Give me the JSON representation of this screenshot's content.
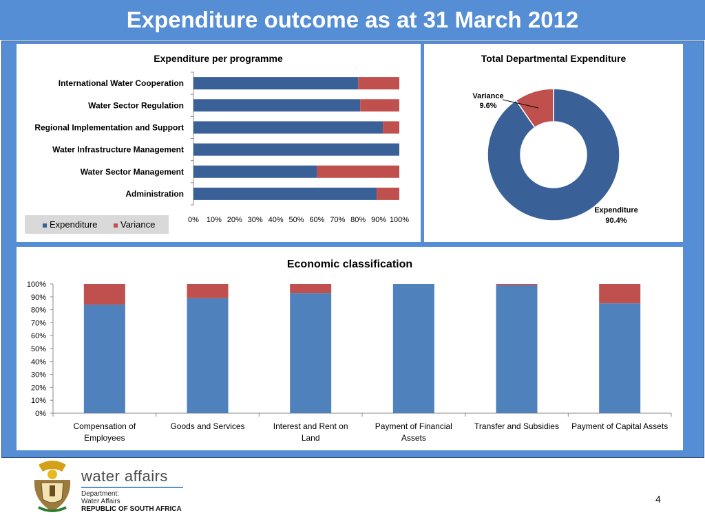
{
  "slide": {
    "title": "Expenditure outcome as at 31 March 2012",
    "page_number": "4"
  },
  "footer": {
    "brand": "water affairs",
    "dept_line1": "Department:",
    "dept_line2": "Water Affairs",
    "country": "REPUBLIC OF SOUTH AFRICA"
  },
  "colors": {
    "title_bar": "#558ED5",
    "expenditure_dark": "#3A6197",
    "expenditure_light": "#4F81BD",
    "variance": "#C0504D"
  },
  "chart_data": [
    {
      "id": "programme",
      "type": "bar",
      "orientation": "horizontal",
      "stacked": "100%",
      "title": "Expenditure per programme",
      "categories": [
        "International Water Cooperation",
        "Water Sector Regulation",
        "Regional Implementation and Support",
        "Water Infrastructure Management",
        "Water Sector Management",
        "Administration"
      ],
      "series": [
        {
          "name": "Expenditure",
          "values": [
            80,
            81,
            92,
            100,
            60,
            89
          ]
        },
        {
          "name": "Variance",
          "values": [
            20,
            19,
            8,
            0,
            40,
            11
          ]
        }
      ],
      "x_ticks": [
        "0%",
        "10%",
        "20%",
        "30%",
        "40%",
        "50%",
        "60%",
        "70%",
        "80%",
        "90%",
        "100%"
      ],
      "xlim": [
        0,
        100
      ],
      "legend": "bottom-left"
    },
    {
      "id": "total",
      "type": "pie",
      "style": "doughnut",
      "title": "Total Departmental Expenditure",
      "slices": [
        {
          "name": "Expenditure",
          "value": 90.4,
          "label": "90.4%"
        },
        {
          "name": "Variance",
          "value": 9.6,
          "label": "9.6%"
        }
      ]
    },
    {
      "id": "economic",
      "type": "bar",
      "orientation": "vertical",
      "stacked": "100%",
      "title": "Economic classification",
      "categories": [
        [
          "Compensation of",
          "Employees"
        ],
        [
          "Goods and Services"
        ],
        [
          "Interest and Rent on",
          "Land"
        ],
        [
          "Payment of Financial",
          "Assets"
        ],
        [
          "Transfer and Subsidies"
        ],
        [
          "Payment of Capital Assets"
        ]
      ],
      "series": [
        {
          "name": "Expenditure",
          "values": [
            84,
            89,
            93,
            100,
            99,
            85
          ]
        },
        {
          "name": "Variance",
          "values": [
            16,
            11,
            7,
            0,
            1,
            15
          ]
        }
      ],
      "y_ticks": [
        "0%",
        "10%",
        "20%",
        "30%",
        "40%",
        "50%",
        "60%",
        "70%",
        "80%",
        "90%",
        "100%"
      ],
      "ylim": [
        0,
        100
      ],
      "grid": false
    }
  ]
}
